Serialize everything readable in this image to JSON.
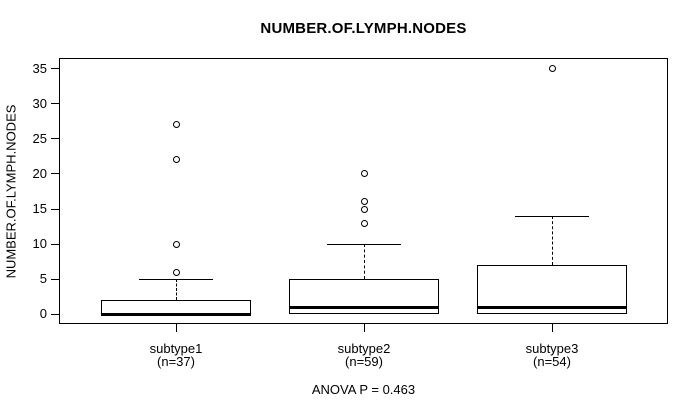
{
  "title": "NUMBER.OF.LYMPH.NODES",
  "footer": "ANOVA P = 0.463",
  "colors": {
    "line": "#000000",
    "background": "#ffffff",
    "box_fill": "#ffffff"
  },
  "chart_data": {
    "type": "boxplot",
    "title": "NUMBER.OF.LYMPH.NODES",
    "xlabel": "",
    "ylabel": "NUMBER.OF.LYMPH.NODES",
    "ylim": [
      0,
      35
    ],
    "yticks": [
      0,
      5,
      10,
      15,
      20,
      25,
      30,
      35
    ],
    "grid": false,
    "legend": false,
    "annotation": "ANOVA P = 0.463",
    "categories": [
      "subtype1",
      "subtype2",
      "subtype3"
    ],
    "groups": [
      {
        "label": "subtype1",
        "sublabel": "(n=37)",
        "n": 37,
        "q1": 0,
        "median": 0,
        "q3": 2,
        "whisker_low": 0,
        "whisker_high": 5,
        "outliers": [
          6,
          10,
          22,
          27
        ]
      },
      {
        "label": "subtype2",
        "sublabel": "(n=59)",
        "n": 59,
        "q1": 0,
        "median": 1,
        "q3": 5,
        "whisker_low": 0,
        "whisker_high": 10,
        "outliers": [
          13,
          15,
          16,
          20
        ]
      },
      {
        "label": "subtype3",
        "sublabel": "(n=54)",
        "n": 54,
        "q1": 0,
        "median": 1,
        "q3": 7,
        "whisker_low": 0,
        "whisker_high": 14,
        "outliers": [
          35
        ]
      }
    ]
  }
}
